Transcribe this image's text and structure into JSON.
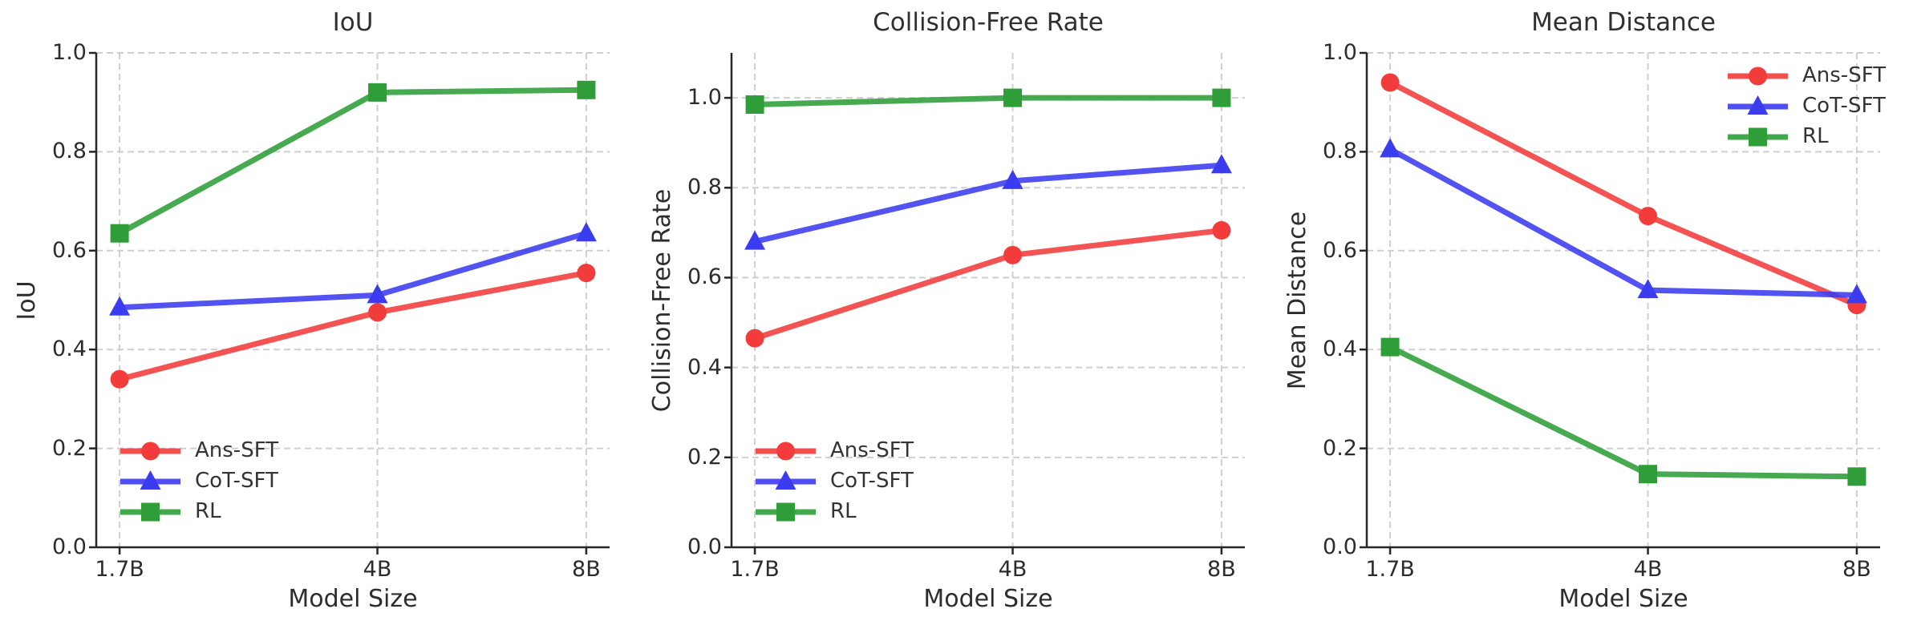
{
  "figure": {
    "background": "#ffffff",
    "text_color": "#2d2d2d",
    "grid_color": "#cfcfcf",
    "spine_color": "#262626"
  },
  "chart_data": [
    {
      "type": "line",
      "title": "IoU",
      "xlabel": "Model Size",
      "ylabel": "IoU",
      "x_tick_labels": [
        "1.7B",
        "4B",
        "8B"
      ],
      "x_values": [
        1.7,
        4,
        8
      ],
      "x_scale": "log",
      "ylim": [
        0.0,
        1.0
      ],
      "yticks": [
        "0.0",
        "0.2",
        "0.4",
        "0.6",
        "0.8",
        "1.0"
      ],
      "grid": true,
      "legend_position": "lower left",
      "series": [
        {
          "name": "Ans-SFT",
          "marker": "circle",
          "color": "#f23b3b",
          "values": [
            0.34,
            0.475,
            0.555
          ]
        },
        {
          "name": "CoT-SFT",
          "marker": "triangle",
          "color": "#3b3bef",
          "values": [
            0.485,
            0.51,
            0.635
          ]
        },
        {
          "name": "RL",
          "marker": "square",
          "color": "#2f9e38",
          "values": [
            0.635,
            0.92,
            0.925
          ]
        }
      ]
    },
    {
      "type": "line",
      "title": "Collision-Free Rate",
      "xlabel": "Model Size",
      "ylabel": "Collision-Free Rate",
      "x_tick_labels": [
        "1.7B",
        "4B",
        "8B"
      ],
      "x_values": [
        1.7,
        4,
        8
      ],
      "x_scale": "log",
      "ylim": [
        0.0,
        1.1
      ],
      "yticks": [
        "0.0",
        "0.2",
        "0.4",
        "0.6",
        "0.8",
        "1.0"
      ],
      "grid": true,
      "legend_position": "lower left",
      "series": [
        {
          "name": "Ans-SFT",
          "marker": "circle",
          "color": "#f23b3b",
          "values": [
            0.465,
            0.65,
            0.705
          ]
        },
        {
          "name": "CoT-SFT",
          "marker": "triangle",
          "color": "#3b3bef",
          "values": [
            0.68,
            0.815,
            0.85
          ]
        },
        {
          "name": "RL",
          "marker": "square",
          "color": "#2f9e38",
          "values": [
            0.985,
            1.0,
            1.0
          ]
        }
      ]
    },
    {
      "type": "line",
      "title": "Mean Distance",
      "xlabel": "Model Size",
      "ylabel": "Mean Distance",
      "x_tick_labels": [
        "1.7B",
        "4B",
        "8B"
      ],
      "x_values": [
        1.7,
        4,
        8
      ],
      "x_scale": "log",
      "ylim": [
        0.0,
        1.0
      ],
      "yticks": [
        "0.0",
        "0.2",
        "0.4",
        "0.6",
        "0.8",
        "1.0"
      ],
      "grid": true,
      "legend_position": "upper right",
      "series": [
        {
          "name": "Ans-SFT",
          "marker": "circle",
          "color": "#f23b3b",
          "values": [
            0.94,
            0.67,
            0.49
          ]
        },
        {
          "name": "CoT-SFT",
          "marker": "triangle",
          "color": "#3b3bef",
          "values": [
            0.805,
            0.52,
            0.51
          ]
        },
        {
          "name": "RL",
          "marker": "square",
          "color": "#2f9e38",
          "values": [
            0.405,
            0.148,
            0.143
          ]
        }
      ]
    }
  ]
}
